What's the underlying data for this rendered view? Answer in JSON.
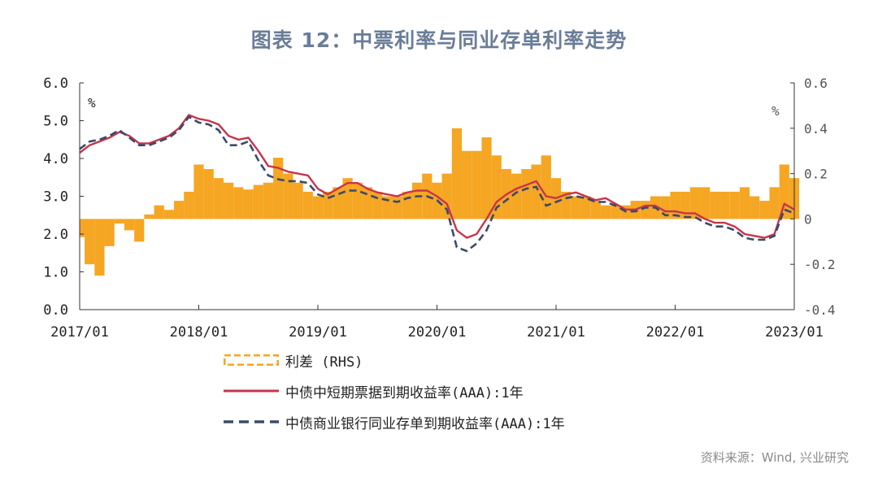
{
  "title": "图表 12：中票利率与同业存单利率走势",
  "source": "资料来源：Wind, 兴业研究",
  "colors": {
    "spread": "#f5a623",
    "mtn": "#c8354a",
    "ncd": "#3a4a6a",
    "title": "#6a7d98"
  },
  "chart_data": {
    "type": "line",
    "xlabel": "",
    "ylabel_left": "%",
    "ylabel_right": "%",
    "ylim_left": [
      0.0,
      6.0
    ],
    "ylim_right": [
      -0.4,
      0.6
    ],
    "yticks_left": [
      "0.0",
      "1.0",
      "2.0",
      "3.0",
      "4.0",
      "5.0",
      "6.0"
    ],
    "yticks_right": [
      "-0.4",
      "-0.2",
      "0",
      "0.2",
      "0.4",
      "0.6"
    ],
    "xticks": [
      "2017/01",
      "2018/01",
      "2019/01",
      "2020/01",
      "2021/01",
      "2022/01",
      "2023/01"
    ],
    "legend_position": "bottom",
    "grid": false,
    "series": [
      {
        "name": "利差 (RHS)",
        "axis": "right",
        "style": "bar",
        "x": [
          "2017/01",
          "2017/02",
          "2017/03",
          "2017/04",
          "2017/05",
          "2017/06",
          "2017/07",
          "2017/08",
          "2017/09",
          "2017/10",
          "2017/11",
          "2017/12",
          "2018/01",
          "2018/02",
          "2018/03",
          "2018/04",
          "2018/05",
          "2018/06",
          "2018/07",
          "2018/08",
          "2018/09",
          "2018/10",
          "2018/11",
          "2018/12",
          "2019/01",
          "2019/02",
          "2019/03",
          "2019/04",
          "2019/05",
          "2019/06",
          "2019/07",
          "2019/08",
          "2019/09",
          "2019/10",
          "2019/11",
          "2019/12",
          "2020/01",
          "2020/02",
          "2020/03",
          "2020/04",
          "2020/05",
          "2020/06",
          "2020/07",
          "2020/08",
          "2020/09",
          "2020/10",
          "2020/11",
          "2020/12",
          "2021/01",
          "2021/02",
          "2021/03",
          "2021/04",
          "2021/05",
          "2021/06",
          "2021/07",
          "2021/08",
          "2021/09",
          "2021/10",
          "2021/11",
          "2021/12",
          "2022/01",
          "2022/02",
          "2022/03",
          "2022/04",
          "2022/05",
          "2022/06",
          "2022/07",
          "2022/08",
          "2022/09",
          "2022/10",
          "2022/11",
          "2022/12",
          "2023/01"
        ],
        "values": [
          -0.08,
          -0.2,
          -0.25,
          -0.12,
          -0.02,
          -0.05,
          -0.1,
          0.02,
          0.06,
          0.04,
          0.08,
          0.12,
          0.24,
          0.22,
          0.18,
          0.16,
          0.14,
          0.13,
          0.15,
          0.16,
          0.27,
          0.2,
          0.16,
          0.12,
          0.1,
          0.12,
          0.14,
          0.18,
          0.16,
          0.14,
          0.12,
          0.1,
          0.1,
          0.12,
          0.16,
          0.2,
          0.16,
          0.2,
          0.4,
          0.3,
          0.3,
          0.36,
          0.28,
          0.22,
          0.2,
          0.22,
          0.24,
          0.28,
          0.18,
          0.12,
          0.1,
          0.1,
          0.08,
          0.06,
          0.06,
          0.06,
          0.08,
          0.08,
          0.1,
          0.1,
          0.12,
          0.12,
          0.14,
          0.14,
          0.12,
          0.12,
          0.12,
          0.14,
          0.1,
          0.08,
          0.14,
          0.24,
          0.18
        ]
      },
      {
        "name": "中债中短期票据到期收益率(AAA):1年",
        "axis": "left",
        "style": "solid",
        "x": [
          "2017/01",
          "2017/02",
          "2017/03",
          "2017/04",
          "2017/05",
          "2017/06",
          "2017/07",
          "2017/08",
          "2017/09",
          "2017/10",
          "2017/11",
          "2017/12",
          "2018/01",
          "2018/02",
          "2018/03",
          "2018/04",
          "2018/05",
          "2018/06",
          "2018/07",
          "2018/08",
          "2018/09",
          "2018/10",
          "2018/11",
          "2018/12",
          "2019/01",
          "2019/02",
          "2019/03",
          "2019/04",
          "2019/05",
          "2019/06",
          "2019/07",
          "2019/08",
          "2019/09",
          "2019/10",
          "2019/11",
          "2019/12",
          "2020/01",
          "2020/02",
          "2020/03",
          "2020/04",
          "2020/05",
          "2020/06",
          "2020/07",
          "2020/08",
          "2020/09",
          "2020/10",
          "2020/11",
          "2020/12",
          "2021/01",
          "2021/02",
          "2021/03",
          "2021/04",
          "2021/05",
          "2021/06",
          "2021/07",
          "2021/08",
          "2021/09",
          "2021/10",
          "2021/11",
          "2021/12",
          "2022/01",
          "2022/02",
          "2022/03",
          "2022/04",
          "2022/05",
          "2022/06",
          "2022/07",
          "2022/08",
          "2022/09",
          "2022/10",
          "2022/11",
          "2022/12",
          "2023/01"
        ],
        "values": [
          4.15,
          4.35,
          4.45,
          4.55,
          4.7,
          4.6,
          4.4,
          4.4,
          4.5,
          4.6,
          4.8,
          5.15,
          5.05,
          5.0,
          4.9,
          4.6,
          4.5,
          4.55,
          4.2,
          3.8,
          3.75,
          3.65,
          3.6,
          3.55,
          3.2,
          3.05,
          3.2,
          3.35,
          3.35,
          3.2,
          3.1,
          3.05,
          3.0,
          3.1,
          3.15,
          3.15,
          3.0,
          2.8,
          2.1,
          1.9,
          2.0,
          2.4,
          2.85,
          3.05,
          3.2,
          3.3,
          3.4,
          3.0,
          2.95,
          3.05,
          3.1,
          3.0,
          2.9,
          2.95,
          2.8,
          2.65,
          2.65,
          2.75,
          2.75,
          2.6,
          2.6,
          2.55,
          2.55,
          2.4,
          2.3,
          2.3,
          2.2,
          2.0,
          1.95,
          1.9,
          2.0,
          2.8,
          2.65
        ]
      },
      {
        "name": "中债商业银行同业存单到期收益率(AAA):1年",
        "axis": "left",
        "style": "dashed",
        "x": [
          "2017/01",
          "2017/02",
          "2017/03",
          "2017/04",
          "2017/05",
          "2017/06",
          "2017/07",
          "2017/08",
          "2017/09",
          "2017/10",
          "2017/11",
          "2017/12",
          "2018/01",
          "2018/02",
          "2018/03",
          "2018/04",
          "2018/05",
          "2018/06",
          "2018/07",
          "2018/08",
          "2018/09",
          "2018/10",
          "2018/11",
          "2018/12",
          "2019/01",
          "2019/02",
          "2019/03",
          "2019/04",
          "2019/05",
          "2019/06",
          "2019/07",
          "2019/08",
          "2019/09",
          "2019/10",
          "2019/11",
          "2019/12",
          "2020/01",
          "2020/02",
          "2020/03",
          "2020/04",
          "2020/05",
          "2020/06",
          "2020/07",
          "2020/08",
          "2020/09",
          "2020/10",
          "2020/11",
          "2020/12",
          "2021/01",
          "2021/02",
          "2021/03",
          "2021/04",
          "2021/05",
          "2021/06",
          "2021/07",
          "2021/08",
          "2021/09",
          "2021/10",
          "2021/11",
          "2021/12",
          "2022/01",
          "2022/02",
          "2022/03",
          "2022/04",
          "2022/05",
          "2022/06",
          "2022/07",
          "2022/08",
          "2022/09",
          "2022/10",
          "2022/11",
          "2022/12",
          "2023/01"
        ],
        "values": [
          4.25,
          4.45,
          4.5,
          4.6,
          4.75,
          4.55,
          4.35,
          4.35,
          4.45,
          4.55,
          4.75,
          5.1,
          4.95,
          4.9,
          4.75,
          4.35,
          4.35,
          4.45,
          3.95,
          3.55,
          3.45,
          3.4,
          3.4,
          3.35,
          3.05,
          2.95,
          3.05,
          3.15,
          3.15,
          3.05,
          2.95,
          2.9,
          2.85,
          2.95,
          3.0,
          3.0,
          2.9,
          2.65,
          1.65,
          1.55,
          1.75,
          2.1,
          2.7,
          2.9,
          3.1,
          3.2,
          3.25,
          2.75,
          2.85,
          2.95,
          3.0,
          2.95,
          2.85,
          2.85,
          2.75,
          2.6,
          2.6,
          2.7,
          2.7,
          2.5,
          2.5,
          2.45,
          2.45,
          2.3,
          2.2,
          2.2,
          2.1,
          1.9,
          1.85,
          1.85,
          1.95,
          2.65,
          2.55
        ]
      }
    ]
  }
}
